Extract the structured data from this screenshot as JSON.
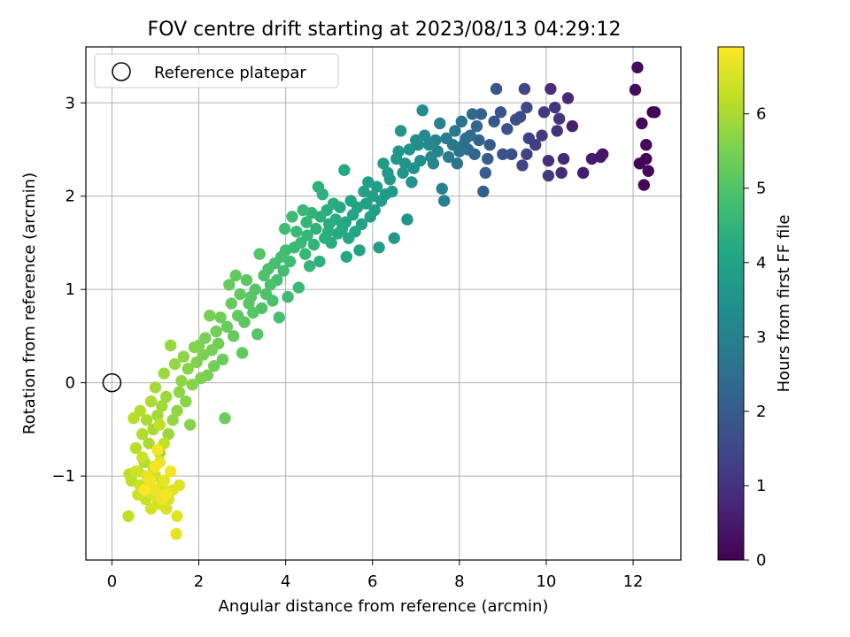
{
  "chart_data": {
    "type": "scatter",
    "title": "FOV centre drift starting at 2023/08/13 04:29:12",
    "xlabel": "Angular distance from reference (arcmin)",
    "ylabel": "Rotation from reference (arcmin)",
    "xlim": [
      -0.6,
      13.1
    ],
    "ylim": [
      -1.9,
      3.6
    ],
    "x_ticks": [
      0,
      2,
      4,
      6,
      8,
      10,
      12
    ],
    "y_ticks": [
      -1,
      0,
      1,
      2,
      3
    ],
    "y_tick_labels": [
      "−1",
      "0",
      "1",
      "2",
      "3"
    ],
    "grid": true,
    "legend": {
      "placement": "upper-left",
      "entries": [
        "Reference platepar"
      ]
    },
    "reference_point": {
      "x": 0,
      "y": 0
    },
    "colorbar": {
      "label": "Hours from first FF file",
      "range": [
        0,
        6.9
      ],
      "ticks": [
        0,
        1,
        2,
        3,
        4,
        5,
        6
      ],
      "colormap": "viridis"
    },
    "points": [
      [
        12.45,
        2.9,
        0.0
      ],
      [
        12.5,
        2.9,
        0.02
      ],
      [
        12.15,
        2.35,
        0.05
      ],
      [
        12.3,
        2.4,
        0.07
      ],
      [
        12.25,
        2.12,
        0.09
      ],
      [
        12.35,
        2.27,
        0.11
      ],
      [
        12.3,
        2.55,
        0.13
      ],
      [
        12.2,
        2.78,
        0.15
      ],
      [
        12.1,
        3.38,
        0.18
      ],
      [
        12.05,
        3.14,
        0.21
      ],
      [
        11.3,
        2.45,
        0.4
      ],
      [
        11.25,
        2.42,
        0.45
      ],
      [
        11.05,
        2.4,
        0.5
      ],
      [
        10.85,
        2.25,
        0.55
      ],
      [
        10.6,
        2.75,
        0.62
      ],
      [
        10.4,
        2.4,
        0.75
      ],
      [
        10.5,
        3.05,
        0.8
      ],
      [
        10.35,
        2.25,
        0.85
      ],
      [
        10.1,
        3.15,
        0.9
      ],
      [
        10.05,
        2.38,
        0.95
      ],
      [
        10.25,
        2.7,
        1.0
      ],
      [
        10.3,
        2.83,
        1.05
      ],
      [
        10.2,
        2.95,
        1.1
      ],
      [
        10.05,
        2.22,
        1.12
      ],
      [
        9.95,
        2.9,
        1.15
      ],
      [
        9.9,
        2.65,
        1.2
      ],
      [
        9.75,
        2.55,
        1.25
      ],
      [
        9.6,
        2.62,
        1.3
      ],
      [
        9.55,
        2.45,
        1.35
      ],
      [
        9.45,
        2.33,
        1.4
      ],
      [
        9.5,
        3.15,
        1.45
      ],
      [
        9.55,
        2.95,
        1.5
      ],
      [
        9.4,
        2.85,
        1.55
      ],
      [
        9.3,
        2.82,
        1.6
      ],
      [
        9.2,
        2.45,
        1.65
      ],
      [
        9.1,
        2.72,
        1.7
      ],
      [
        9.0,
        2.45,
        1.75
      ],
      [
        8.95,
        2.9,
        1.8
      ],
      [
        8.85,
        3.15,
        1.85
      ],
      [
        8.8,
        2.8,
        1.9
      ],
      [
        8.7,
        2.55,
        1.95
      ],
      [
        8.65,
        2.4,
        2.0
      ],
      [
        8.55,
        2.05,
        2.05
      ],
      [
        8.6,
        2.25,
        2.1
      ],
      [
        8.5,
        2.88,
        2.15
      ],
      [
        8.45,
        2.6,
        2.2
      ],
      [
        8.4,
        2.75,
        2.25
      ],
      [
        8.35,
        2.45,
        2.3
      ],
      [
        8.3,
        2.88,
        2.35
      ],
      [
        8.25,
        2.65,
        2.4
      ],
      [
        8.2,
        2.5,
        2.45
      ],
      [
        8.15,
        2.62,
        2.5
      ],
      [
        8.1,
        2.55,
        2.55
      ],
      [
        8.05,
        2.8,
        2.6
      ],
      [
        8.0,
        2.48,
        2.65
      ],
      [
        7.95,
        2.35,
        2.7
      ],
      [
        7.9,
        2.7,
        2.75
      ],
      [
        7.85,
        2.55,
        2.8
      ],
      [
        7.75,
        2.42,
        2.85
      ],
      [
        7.7,
        2.62,
        2.9
      ],
      [
        7.65,
        1.95,
        2.95
      ],
      [
        7.6,
        2.08,
        3.0
      ],
      [
        7.55,
        2.78,
        3.05
      ],
      [
        7.5,
        2.48,
        3.08
      ],
      [
        7.45,
        2.6,
        3.1
      ],
      [
        7.4,
        2.35,
        3.15
      ],
      [
        7.35,
        2.42,
        3.2
      ],
      [
        7.3,
        2.55,
        3.25
      ],
      [
        7.2,
        2.65,
        3.28
      ],
      [
        7.15,
        2.92,
        3.3
      ],
      [
        7.1,
        2.38,
        3.35
      ],
      [
        7.05,
        2.55,
        3.38
      ],
      [
        7.0,
        2.6,
        3.4
      ],
      [
        6.95,
        2.3,
        3.45
      ],
      [
        6.9,
        2.15,
        3.48
      ],
      [
        6.85,
        2.5,
        3.5
      ],
      [
        6.8,
        1.75,
        3.52
      ],
      [
        6.75,
        2.35,
        3.55
      ],
      [
        6.7,
        2.25,
        3.57
      ],
      [
        6.65,
        2.7,
        3.6
      ],
      [
        6.6,
        2.48,
        3.62
      ],
      [
        6.55,
        2.4,
        3.64
      ],
      [
        6.5,
        1.55,
        3.66
      ],
      [
        6.45,
        2.05,
        3.68
      ],
      [
        6.4,
        2.18,
        3.7
      ],
      [
        6.35,
        2.25,
        3.72
      ],
      [
        6.3,
        2.02,
        3.74
      ],
      [
        6.25,
        2.35,
        3.76
      ],
      [
        6.2,
        1.95,
        3.78
      ],
      [
        6.15,
        1.45,
        3.8
      ],
      [
        6.1,
        2.1,
        3.82
      ],
      [
        6.05,
        1.85,
        3.84
      ],
      [
        6.0,
        2.0,
        3.86
      ],
      [
        5.95,
        1.78,
        3.88
      ],
      [
        5.9,
        2.15,
        3.9
      ],
      [
        5.85,
        1.92,
        3.92
      ],
      [
        5.8,
        2.05,
        3.94
      ],
      [
        5.75,
        1.7,
        3.96
      ],
      [
        5.7,
        1.42,
        3.98
      ],
      [
        5.65,
        1.88,
        4.0
      ],
      [
        5.6,
        1.62,
        4.02
      ],
      [
        5.55,
        1.8,
        4.04
      ],
      [
        5.5,
        1.95,
        4.06
      ],
      [
        5.45,
        1.55,
        4.08
      ],
      [
        5.4,
        1.35,
        4.1
      ],
      [
        5.38,
        1.72,
        4.12
      ],
      [
        5.35,
        2.28,
        4.14
      ],
      [
        5.3,
        1.65,
        4.16
      ],
      [
        5.25,
        1.88,
        4.18
      ],
      [
        5.2,
        1.6,
        4.2
      ],
      [
        5.15,
        1.75,
        4.22
      ],
      [
        5.1,
        1.92,
        4.24
      ],
      [
        5.05,
        1.5,
        4.26
      ],
      [
        5.0,
        1.7,
        4.28
      ],
      [
        4.98,
        1.62,
        4.3
      ],
      [
        4.95,
        1.85,
        4.32
      ],
      [
        4.9,
        1.55,
        4.34
      ],
      [
        4.85,
        2.02,
        4.36
      ],
      [
        4.8,
        1.78,
        4.38
      ],
      [
        4.78,
        1.3,
        4.4
      ],
      [
        4.75,
        2.1,
        4.42
      ],
      [
        4.7,
        1.65,
        4.44
      ],
      [
        4.65,
        1.48,
        4.46
      ],
      [
        4.6,
        1.82,
        4.48
      ],
      [
        4.55,
        1.25,
        4.5
      ],
      [
        4.5,
        1.58,
        4.52
      ],
      [
        4.48,
        1.72,
        4.54
      ],
      [
        4.45,
        1.38,
        4.56
      ],
      [
        4.4,
        1.85,
        4.58
      ],
      [
        4.35,
        1.5,
        4.6
      ],
      [
        4.3,
        1.02,
        4.62
      ],
      [
        4.25,
        1.62,
        4.64
      ],
      [
        4.2,
        1.45,
        4.66
      ],
      [
        4.15,
        1.78,
        4.68
      ],
      [
        4.1,
        1.3,
        4.7
      ],
      [
        4.05,
        0.92,
        4.72
      ],
      [
        4.0,
        1.42,
        4.74
      ],
      [
        3.98,
        1.65,
        4.76
      ],
      [
        3.95,
        1.2,
        4.78
      ],
      [
        3.9,
        1.35,
        4.8
      ],
      [
        3.85,
        0.7,
        4.82
      ],
      [
        3.8,
        1.1,
        4.84
      ],
      [
        3.75,
        1.28,
        4.86
      ],
      [
        3.7,
        0.88,
        4.88
      ],
      [
        3.65,
        1.05,
        4.9
      ],
      [
        3.6,
        1.22,
        4.92
      ],
      [
        3.55,
        0.95,
        4.94
      ],
      [
        3.5,
        1.15,
        4.96
      ],
      [
        3.45,
        0.8,
        4.98
      ],
      [
        3.4,
        1.38,
        5.0
      ],
      [
        3.35,
        0.52,
        5.02
      ],
      [
        3.3,
        1.0,
        5.04
      ],
      [
        3.25,
        0.75,
        5.06
      ],
      [
        3.2,
        0.92,
        5.08
      ],
      [
        3.15,
        0.85,
        5.1
      ],
      [
        3.1,
        1.1,
        5.12
      ],
      [
        3.05,
        0.65,
        5.14
      ],
      [
        3.0,
        0.32,
        5.16
      ],
      [
        2.95,
        0.95,
        5.18
      ],
      [
        2.9,
        0.72,
        5.2
      ],
      [
        2.85,
        1.15,
        5.22
      ],
      [
        2.8,
        0.5,
        5.24
      ],
      [
        2.75,
        0.85,
        5.26
      ],
      [
        2.7,
        1.05,
        5.28
      ],
      [
        2.65,
        0.6,
        5.3
      ],
      [
        2.6,
        -0.38,
        5.32
      ],
      [
        2.55,
        0.25,
        5.34
      ],
      [
        2.5,
        0.7,
        5.36
      ],
      [
        2.45,
        0.42,
        5.38
      ],
      [
        2.4,
        0.55,
        5.4
      ],
      [
        2.35,
        0.18,
        5.42
      ],
      [
        2.3,
        0.35,
        5.44
      ],
      [
        2.25,
        0.72,
        5.46
      ],
      [
        2.2,
        0.08,
        5.48
      ],
      [
        2.15,
        0.48,
        5.5
      ],
      [
        2.1,
        0.3,
        5.52
      ],
      [
        2.05,
        0.05,
        5.54
      ],
      [
        2.0,
        0.4,
        5.56
      ],
      [
        1.95,
        0.22,
        5.58
      ],
      [
        1.9,
        0.38,
        5.6
      ],
      [
        1.85,
        -0.02,
        5.62
      ],
      [
        1.8,
        -0.45,
        5.64
      ],
      [
        1.75,
        0.15,
        5.66
      ],
      [
        1.7,
        -0.2,
        5.68
      ],
      [
        1.65,
        0.28,
        5.7
      ],
      [
        1.6,
        0.02,
        5.72
      ],
      [
        1.55,
        -0.1,
        5.74
      ],
      [
        1.5,
        -0.3,
        5.76
      ],
      [
        1.45,
        0.2,
        5.78
      ],
      [
        1.4,
        -0.4,
        5.8
      ],
      [
        1.35,
        0.4,
        5.82
      ],
      [
        1.3,
        -0.55,
        5.84
      ],
      [
        1.25,
        -0.15,
        5.86
      ],
      [
        1.2,
        0.1,
        5.88
      ],
      [
        1.15,
        -0.25,
        5.9
      ],
      [
        1.1,
        -0.75,
        5.92
      ],
      [
        1.05,
        -0.35,
        5.94
      ],
      [
        1.0,
        -0.05,
        5.96
      ],
      [
        0.95,
        -0.5,
        5.98
      ],
      [
        0.9,
        -0.2,
        6.0
      ],
      [
        0.85,
        -0.65,
        6.02
      ],
      [
        0.8,
        -0.4,
        6.04
      ],
      [
        0.75,
        -0.85,
        6.06
      ],
      [
        0.7,
        -0.55,
        6.08
      ],
      [
        0.65,
        -0.3,
        6.1
      ],
      [
        0.6,
        -0.95,
        6.12
      ],
      [
        0.55,
        -0.7,
        6.14
      ],
      [
        0.5,
        -0.38,
        6.16
      ],
      [
        0.45,
        -1.05,
        6.18
      ],
      [
        0.4,
        -0.98,
        6.2
      ],
      [
        0.38,
        -1.43,
        6.22
      ],
      [
        1.2,
        -0.65,
        6.24
      ],
      [
        1.1,
        -0.45,
        6.26
      ],
      [
        0.95,
        -0.9,
        6.28
      ],
      [
        0.85,
        -1.15,
        6.3
      ],
      [
        0.78,
        -1.25,
        6.32
      ],
      [
        0.7,
        -0.8,
        6.34
      ],
      [
        0.65,
        -1.1,
        6.36
      ],
      [
        0.6,
        -1.2,
        6.38
      ],
      [
        0.55,
        -0.95,
        6.4
      ],
      [
        1.0,
        -1.0,
        6.42
      ],
      [
        1.05,
        -1.3,
        6.44
      ],
      [
        0.9,
        -1.35,
        6.46
      ],
      [
        1.25,
        -1.35,
        6.48
      ],
      [
        1.3,
        -1.25,
        6.5
      ],
      [
        1.15,
        -1.1,
        6.52
      ],
      [
        0.95,
        -1.2,
        6.54
      ],
      [
        1.4,
        -1.15,
        6.56
      ],
      [
        1.55,
        -1.1,
        6.58
      ],
      [
        1.5,
        -1.43,
        6.6
      ],
      [
        1.48,
        -1.62,
        6.62
      ],
      [
        1.2,
        -1.05,
        6.64
      ],
      [
        1.1,
        -0.85,
        6.66
      ],
      [
        0.8,
        -1.0,
        6.68
      ],
      [
        1.0,
        -1.15,
        6.7
      ],
      [
        1.15,
        -1.25,
        6.72
      ],
      [
        0.88,
        -1.05,
        6.74
      ],
      [
        1.35,
        -0.95,
        6.76
      ],
      [
        1.05,
        -0.72,
        6.78
      ],
      [
        1.25,
        -1.2,
        6.8
      ],
      [
        1.0,
        -0.9,
        6.85
      ],
      [
        0.75,
        -1.15,
        6.88
      ]
    ]
  }
}
